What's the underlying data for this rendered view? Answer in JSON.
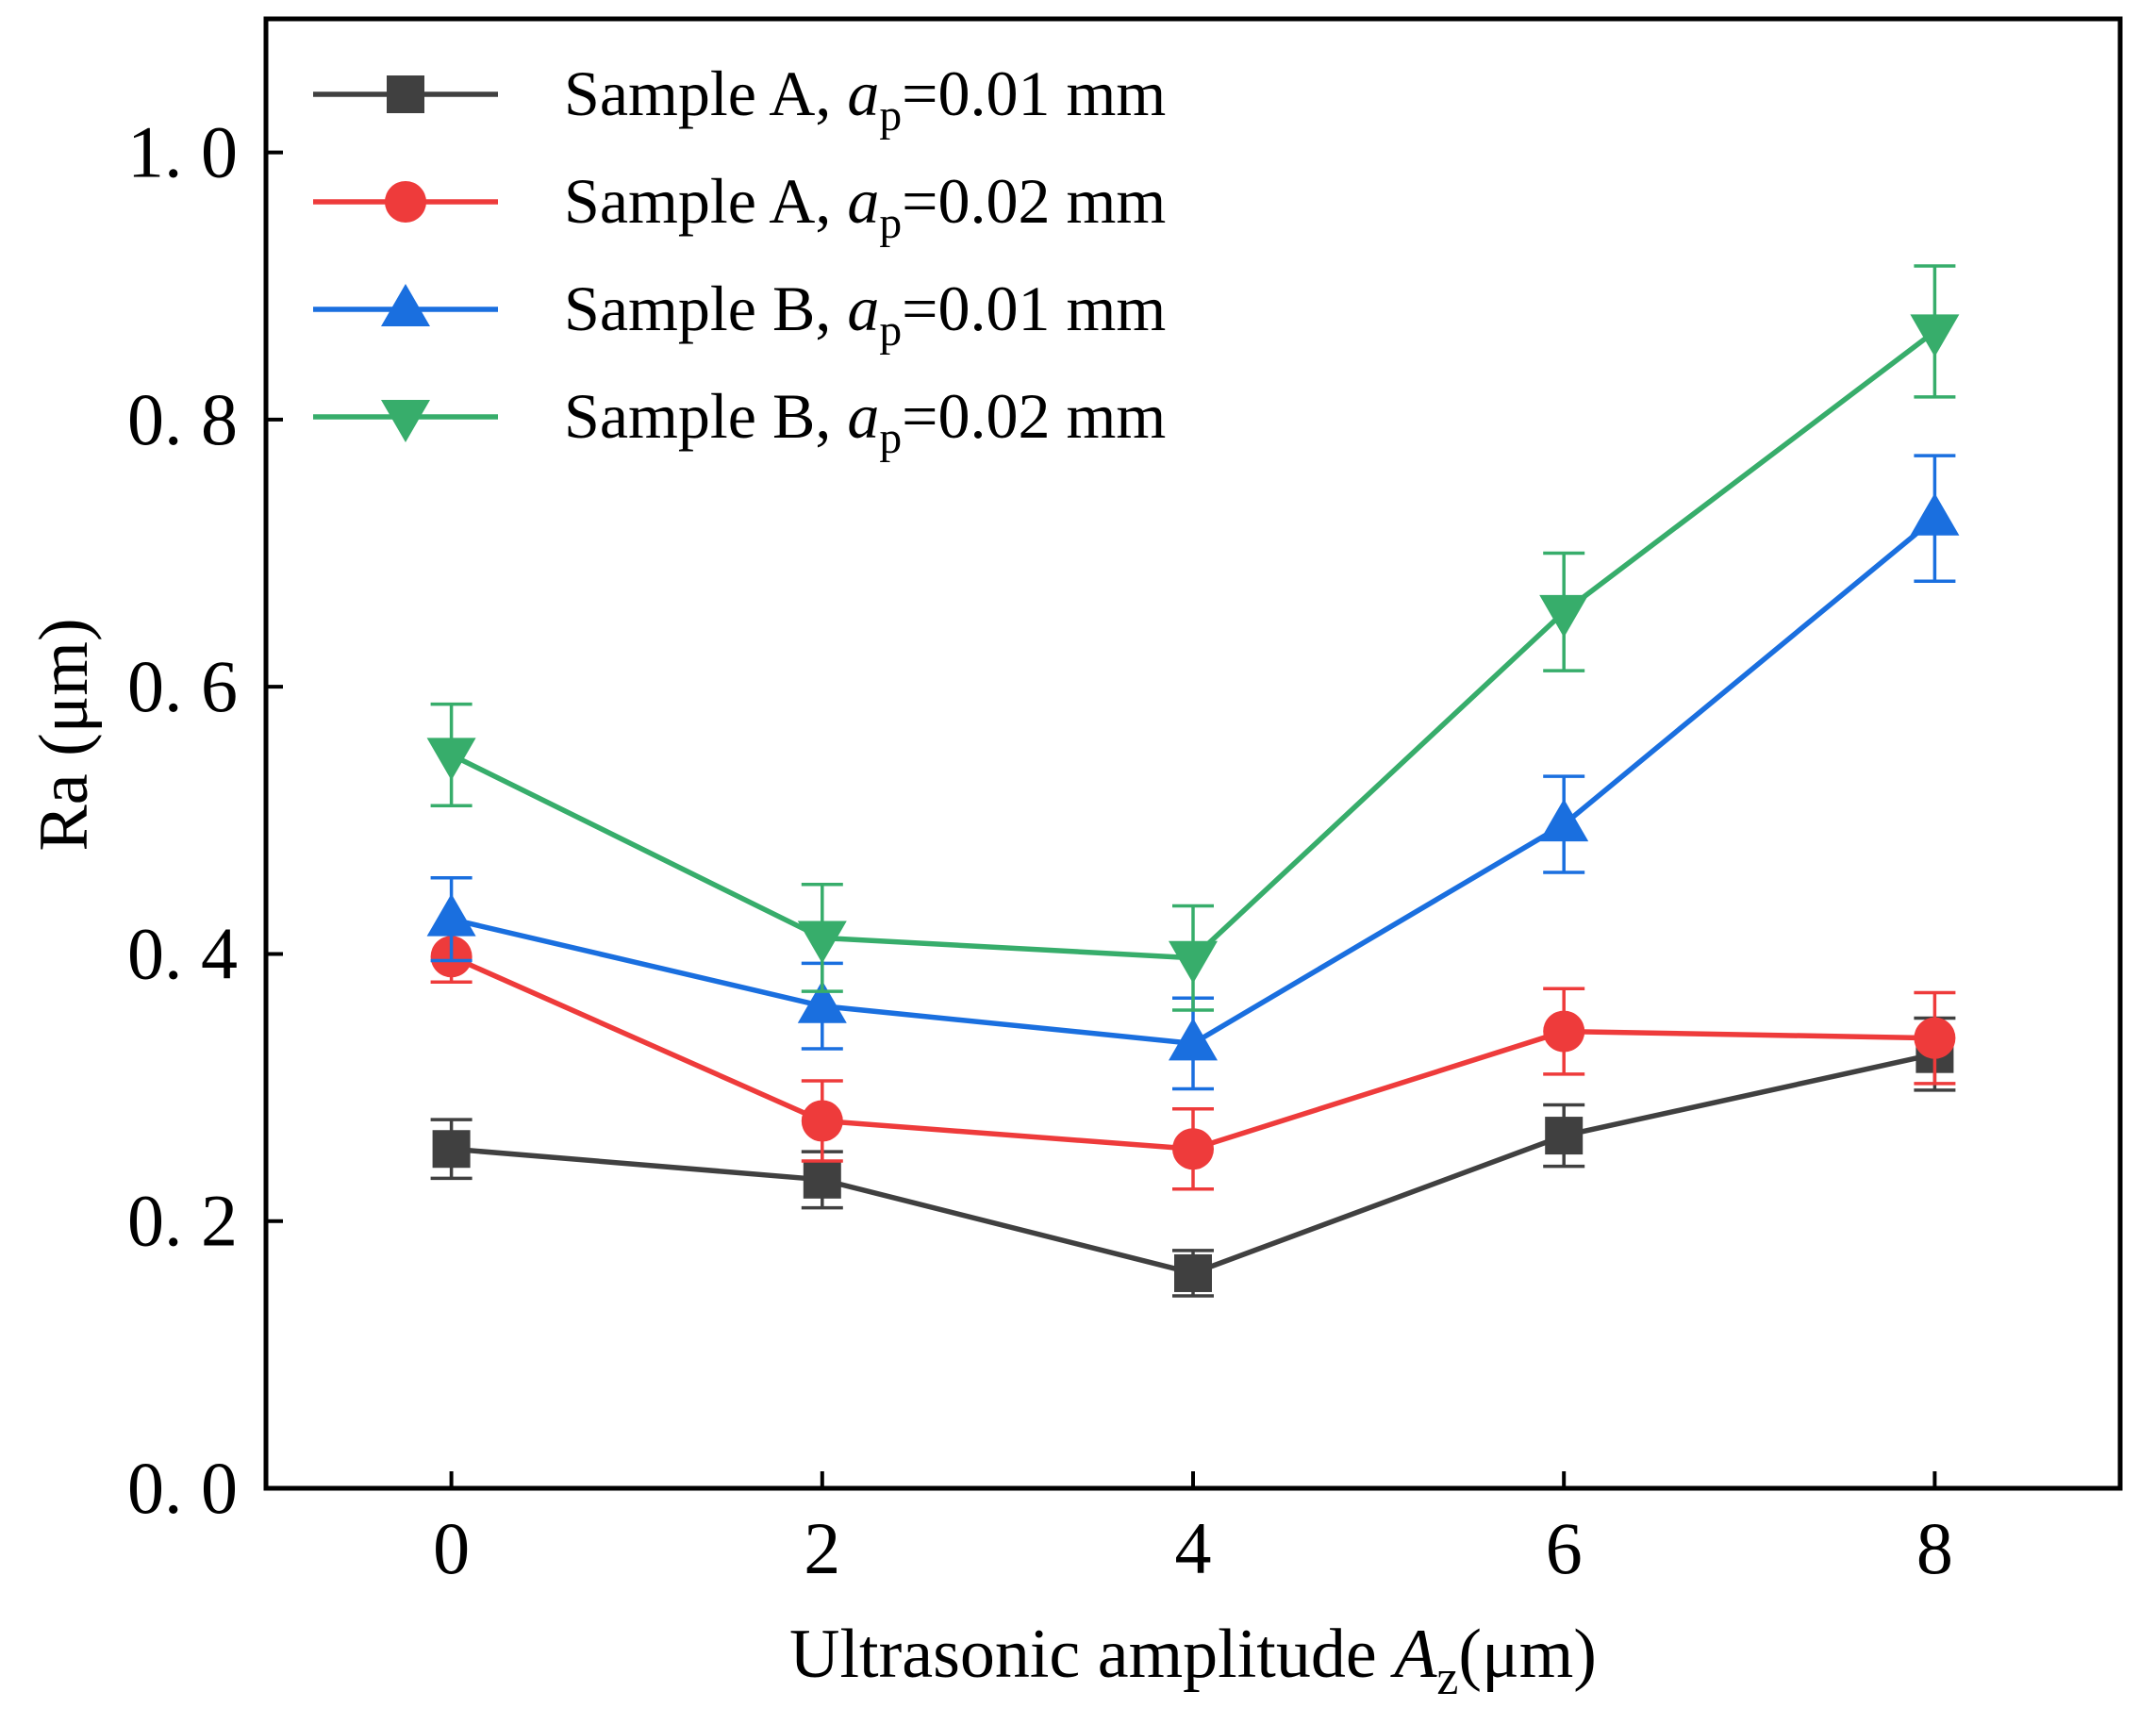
{
  "chart_data": {
    "type": "line",
    "title": "",
    "xlabel": {
      "prefix": "Ultrasonic amplitude ",
      "var": "A",
      "sub": "z",
      "suffix": "(μm)"
    },
    "ylabel": "Ra (μm)",
    "xlim": [
      -1,
      9
    ],
    "ylim": [
      0.0,
      1.1
    ],
    "xticks": [
      0,
      2,
      4,
      6,
      8
    ],
    "xtick_labels": [
      "0",
      "2",
      "4",
      "6",
      "8"
    ],
    "yticks": [
      0.0,
      0.2,
      0.4,
      0.6,
      0.8,
      1.0
    ],
    "ytick_labels": [
      "0. 0",
      "0. 2",
      "0. 4",
      "0. 6",
      "0. 8",
      "1. 0"
    ],
    "grid": false,
    "legend_position": "top-left",
    "x": [
      0,
      2,
      4,
      6,
      8
    ],
    "series": [
      {
        "name": "Sample A, a_p=0.01 mm",
        "legend": {
          "prefix": "Sample A, ",
          "var": "a",
          "sub": "p",
          "suffix": "=0.01 mm"
        },
        "color": "#404040",
        "marker": "square",
        "values": [
          0.254,
          0.231,
          0.161,
          0.264,
          0.325
        ],
        "errors": [
          0.022,
          0.021,
          0.017,
          0.023,
          0.027
        ]
      },
      {
        "name": "Sample A, a_p=0.02 mm",
        "legend": {
          "prefix": "Sample A, ",
          "var": "a",
          "sub": "p",
          "suffix": "=0.02 mm"
        },
        "color": "#ee3b3b",
        "marker": "circle",
        "values": [
          0.398,
          0.275,
          0.254,
          0.342,
          0.337
        ],
        "errors": [
          0.019,
          0.03,
          0.03,
          0.032,
          0.034
        ]
      },
      {
        "name": "Sample B, a_p=0.01 mm",
        "legend": {
          "prefix": "Sample B,  ",
          "var": "a",
          "sub": "p",
          "suffix": "=0.01 mm"
        },
        "color": "#1a6fdf",
        "marker": "triangle-up",
        "values": [
          0.426,
          0.361,
          0.333,
          0.497,
          0.726
        ],
        "errors": [
          0.031,
          0.032,
          0.034,
          0.036,
          0.047
        ]
      },
      {
        "name": "Sample B, a_p=0.02 mm",
        "legend": {
          "prefix": "Sample B,  ",
          "var": "a",
          "sub": "p",
          "suffix": "=0.02 mm"
        },
        "color": "#37ad6b",
        "marker": "triangle-down",
        "values": [
          0.549,
          0.412,
          0.397,
          0.656,
          0.866
        ],
        "errors": [
          0.038,
          0.04,
          0.039,
          0.044,
          0.049
        ]
      }
    ]
  }
}
